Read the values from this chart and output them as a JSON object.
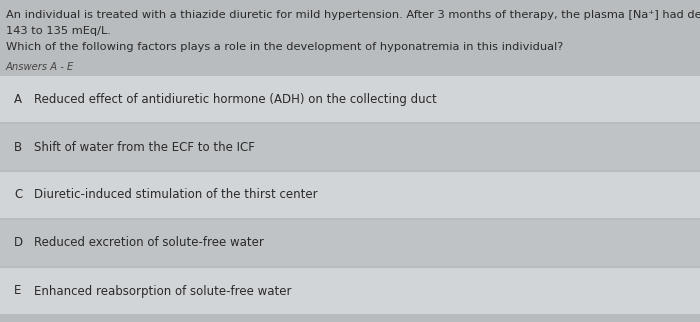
{
  "background_color": "#b8bcbe",
  "question_text_line1": "An individual is treated with a thiazide diuretic for mild hypertension. After 3 months of therapy, the plasma [Na⁺] had decreased from",
  "question_text_line2": "143 to 135 mEq/L.",
  "question_text_line3": "Which of the following factors plays a role in the development of hyponatremia in this individual?",
  "answers_label": "Answers A - E",
  "answers": [
    {
      "letter": "A",
      "text": "Reduced effect of antidiuretic hormone (ADH) on the collecting duct"
    },
    {
      "letter": "B",
      "text": "Shift of water from the ECF to the ICF"
    },
    {
      "letter": "C",
      "text": "Diuretic-induced stimulation of the thirst center"
    },
    {
      "letter": "D",
      "text": "Reduced excretion of solute-free water"
    },
    {
      "letter": "E",
      "text": "Enhanced reabsorption of solute-free water"
    }
  ],
  "row_colors": [
    "#d2d5d7",
    "#bfc3c6",
    "#d2d5d7",
    "#bfc3c6",
    "#d2d5d7"
  ],
  "text_color": "#2a2a2a",
  "label_color": "#444444",
  "question_fontsize": 8.2,
  "answer_fontsize": 8.5,
  "answers_label_fontsize": 7.2
}
